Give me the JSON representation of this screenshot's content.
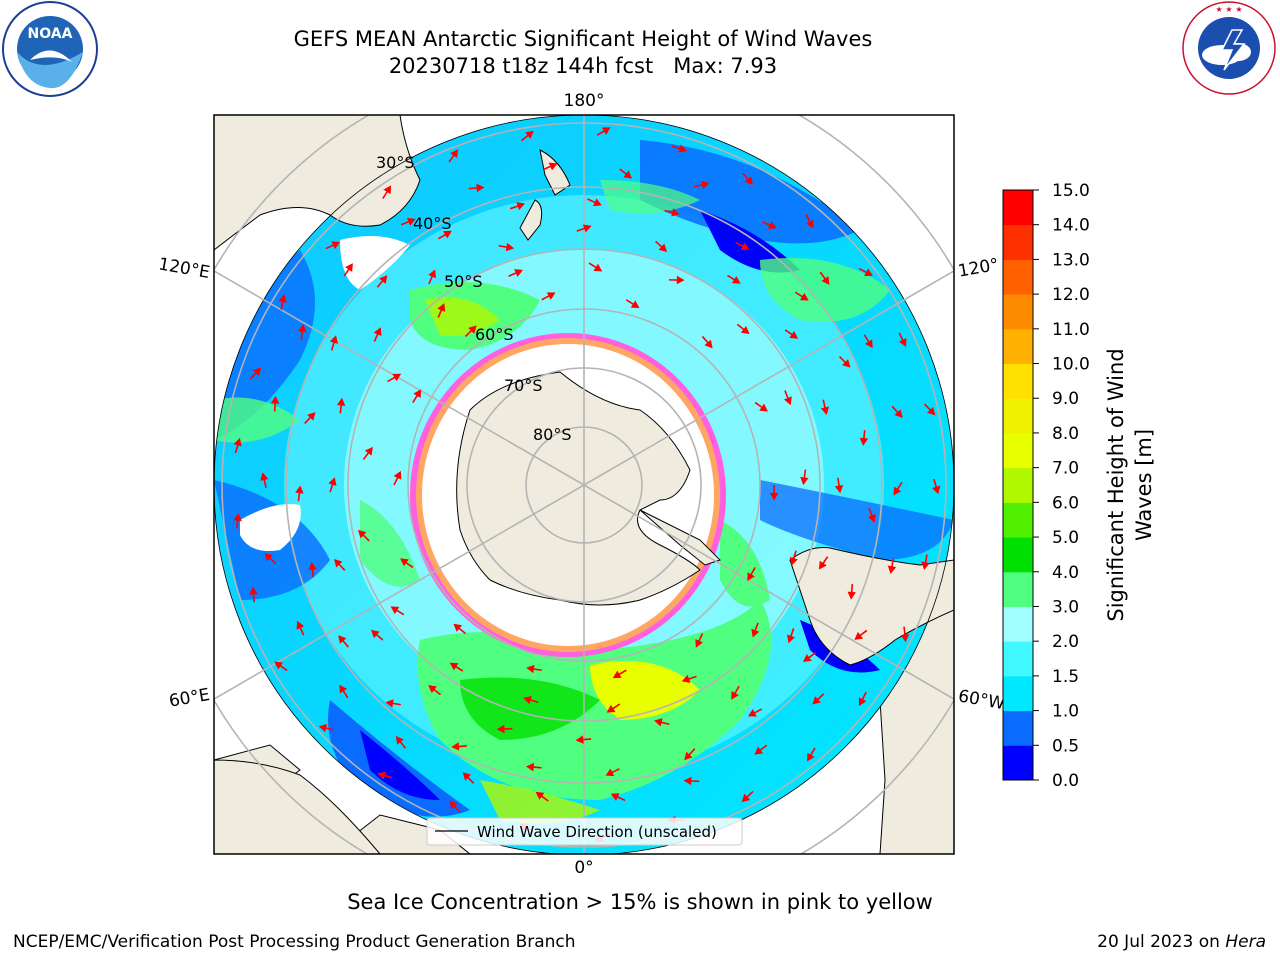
{
  "title": {
    "line1": "GEFS MEAN Antarctic Significant Height of Wind Waves",
    "line2": "20230718 t18z 144h fcst   Max: 7.93"
  },
  "map": {
    "meridian_labels": [
      "180°",
      "120°E",
      "120°",
      "60°E",
      "60°W",
      "0°"
    ],
    "parallel_labels": [
      "30°S",
      "40°S",
      "50°S",
      "60°S",
      "70°S",
      "80°S"
    ],
    "legend_label": "Wind Wave Direction (unscaled)"
  },
  "colorbar": {
    "title": "Significant Height of Wind Waves [m]",
    "title_line1": "Significant Height of Wind",
    "title_line2": "Waves [m]",
    "ticks": [
      "0.0",
      "0.5",
      "1.0",
      "1.5",
      "2.0",
      "3.0",
      "4.0",
      "5.0",
      "6.0",
      "7.0",
      "8.0",
      "9.0",
      "10.0",
      "11.0",
      "12.0",
      "13.0",
      "14.0",
      "15.0"
    ],
    "colors": [
      "#0000ff",
      "#0a6cff",
      "#00e8ff",
      "#40f8ff",
      "#a0ffff",
      "#50ff80",
      "#00e000",
      "#50f000",
      "#b0f800",
      "#e8ff00",
      "#f0f000",
      "#ffe000",
      "#ffb000",
      "#ff8c00",
      "#ff6000",
      "#ff3000",
      "#ff0000"
    ]
  },
  "logos": {
    "noaa": "NOAA",
    "noaa_ring": "NATIONAL OCEANIC AND ATMOSPHERIC ADMINISTRATION · U.S. DEPARTMENT OF COMMERCE",
    "nws_ring": "NATIONAL WEATHER SERVICE"
  },
  "footer": {
    "caption": "Sea Ice Concentration > 15% is shown in pink to yellow",
    "left": "NCEP/EMC/Verification Post Processing Product Generation Branch",
    "date": "20 Jul 2023 on ",
    "host": "Hera"
  }
}
